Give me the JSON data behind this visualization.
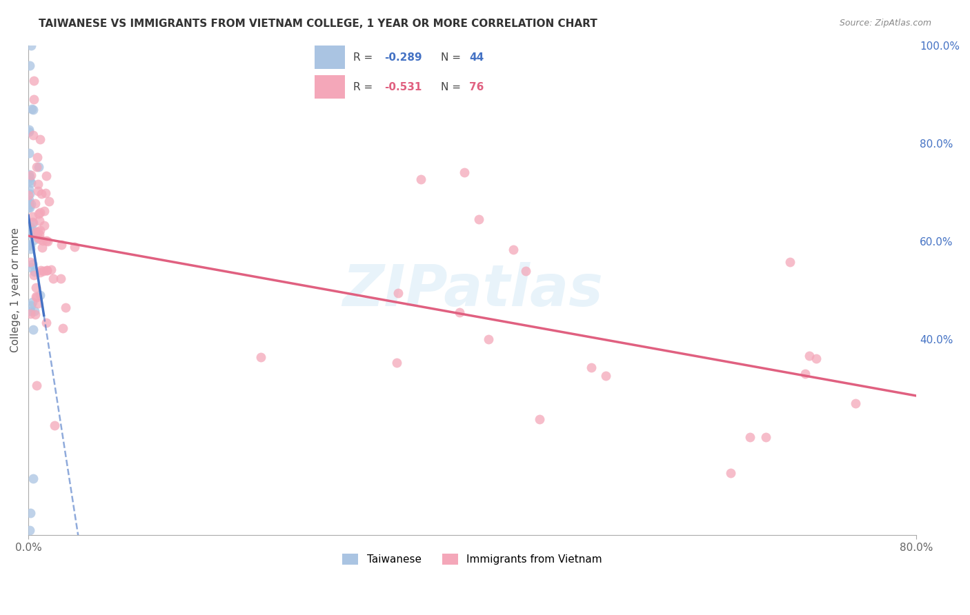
{
  "title": "TAIWANESE VS IMMIGRANTS FROM VIETNAM COLLEGE, 1 YEAR OR MORE CORRELATION CHART",
  "source": "Source: ZipAtlas.com",
  "ylabel_label": "College, 1 year or more",
  "xmin": 0.0,
  "xmax": 0.8,
  "ymin": 0.0,
  "ymax": 1.0,
  "taiwanese_R": -0.289,
  "taiwanese_N": 44,
  "vietnam_R": -0.531,
  "vietnam_N": 76,
  "taiwanese_color": "#aac4e2",
  "vietnamese_color": "#f4a7b9",
  "taiwanese_line_color": "#4472C4",
  "vietnamese_line_color": "#E06080",
  "legend_label_1": "Taiwanese",
  "legend_label_2": "Immigrants from Vietnam",
  "watermark": "ZIPatlas",
  "right_yticks": [
    0.4,
    0.6,
    0.8,
    1.0
  ],
  "right_yticklabels": [
    "40.0%",
    "60.0%",
    "80.0%",
    "100.0%"
  ]
}
